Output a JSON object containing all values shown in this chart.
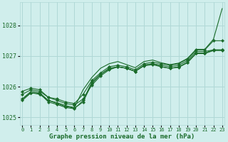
{
  "background_color": "#d0eeec",
  "grid_color": "#b0d8d6",
  "line_color": "#1a6b2a",
  "marker_color": "#1a6b2a",
  "xlabel": "Graphe pression niveau de la mer (hPa)",
  "ylim": [
    1024.75,
    1028.75
  ],
  "xlim": [
    -0.3,
    23.3
  ],
  "yticks": [
    1025,
    1026,
    1027,
    1028
  ],
  "xticks": [
    0,
    1,
    2,
    3,
    4,
    5,
    6,
    7,
    8,
    9,
    10,
    11,
    12,
    13,
    14,
    15,
    16,
    17,
    18,
    19,
    20,
    21,
    22,
    23
  ],
  "series_with_markers": [
    [
      1025.75,
      1025.9,
      1025.85,
      1025.65,
      1025.55,
      1025.45,
      1025.4,
      1025.6,
      1026.05,
      1026.35,
      1026.55,
      1026.65,
      1026.6,
      1026.5,
      1026.7,
      1026.75,
      1026.7,
      1026.65,
      1026.7,
      1026.85,
      1027.15,
      1027.15,
      1027.2,
      1027.2
    ],
    [
      1025.85,
      1025.95,
      1025.9,
      1025.65,
      1025.6,
      1025.5,
      1025.45,
      1025.75,
      1026.2,
      1026.45,
      1026.65,
      1026.7,
      1026.65,
      1026.55,
      1026.75,
      1026.8,
      1026.75,
      1026.7,
      1026.75,
      1026.9,
      1027.2,
      1027.2,
      1027.5,
      1027.5
    ],
    [
      1025.6,
      1025.8,
      1025.75,
      1025.55,
      1025.45,
      1025.35,
      1025.3,
      1025.5,
      1026.1,
      1026.4,
      1026.6,
      1026.65,
      1026.6,
      1026.5,
      1026.7,
      1026.75,
      1026.65,
      1026.6,
      1026.65,
      1026.8,
      1027.1,
      1027.1,
      1027.2,
      1027.2
    ],
    [
      1025.55,
      1025.8,
      1025.78,
      1025.5,
      1025.42,
      1025.32,
      1025.28,
      1025.55,
      1026.15,
      1026.4,
      1026.58,
      1026.65,
      1026.6,
      1026.5,
      1026.68,
      1026.72,
      1026.65,
      1026.6,
      1026.63,
      1026.78,
      1027.08,
      1027.08,
      1027.18,
      1027.18
    ]
  ],
  "series_no_markers": [
    [
      1025.6,
      1025.85,
      1025.8,
      1025.55,
      1025.48,
      1025.38,
      1025.32,
      1025.9,
      1026.3,
      1026.6,
      1026.75,
      1026.82,
      1026.72,
      1026.62,
      1026.82,
      1026.87,
      1026.78,
      1026.72,
      1026.77,
      1026.92,
      1027.22,
      1027.22,
      1027.55,
      1028.55
    ]
  ]
}
